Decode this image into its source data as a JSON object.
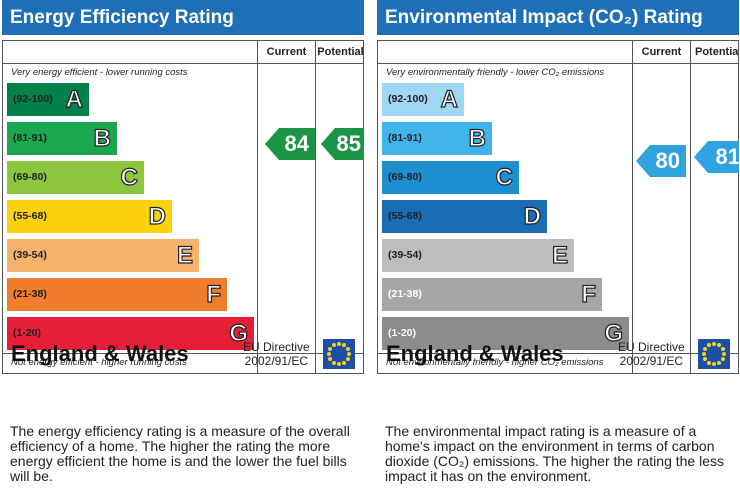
{
  "energy": {
    "title": "Energy Efficiency Rating",
    "col_current": "Current",
    "col_potential": "Potential",
    "top_caption": "Very energy efficient - lower running costs",
    "bottom_caption": "Not energy efficient - higher running costs",
    "bands": [
      {
        "range": "(92-100)",
        "letter": "A",
        "color": "#00804a"
      },
      {
        "range": "(81-91)",
        "letter": "B",
        "color": "#1aa74d"
      },
      {
        "range": "(69-80)",
        "letter": "C",
        "color": "#8cc63f"
      },
      {
        "range": "(55-68)",
        "letter": "D",
        "color": "#fcd20f"
      },
      {
        "range": "(39-54)",
        "letter": "E",
        "color": "#f5b26b"
      },
      {
        "range": "(21-38)",
        "letter": "F",
        "color": "#ef7d2a"
      },
      {
        "range": "(1-20)",
        "letter": "G",
        "color": "#e51f37"
      }
    ],
    "current": "84",
    "potential": "85",
    "region": "England & Wales",
    "directive_line1": "EU Directive",
    "directive_line2": "2002/91/EC",
    "description": "The energy efficiency rating is a measure of the overall efficiency of a home. The higher the rating the more energy efficient the home is and the lower the fuel bills will be."
  },
  "environment": {
    "title": "Environmental Impact (CO₂) Rating",
    "col_current": "Current",
    "col_potential": "Potential",
    "top_caption": "Very environmentally friendly - lower CO₂ emissions",
    "bottom_caption": "Not environmentally friendly - higher CO₂ emissions",
    "bands": [
      {
        "range": "(92-100)",
        "letter": "A",
        "color": "#9fd6f2"
      },
      {
        "range": "(81-91)",
        "letter": "B",
        "color": "#3fb3ea"
      },
      {
        "range": "(69-80)",
        "letter": "C",
        "color": "#1d8fd0"
      },
      {
        "range": "(55-68)",
        "letter": "D",
        "color": "#1a6db5"
      },
      {
        "range": "(39-54)",
        "letter": "E",
        "color": "#bdbdbd"
      },
      {
        "range": "(21-38)",
        "letter": "F",
        "color": "#a6a6a6"
      },
      {
        "range": "(1-20)",
        "letter": "G",
        "color": "#8c8c8c"
      }
    ],
    "current": "80",
    "potential": "81",
    "region": "England & Wales",
    "directive_line1": "EU Directive",
    "directive_line2": "2002/91/EC",
    "description": "The environmental impact rating is a measure of a home's impact on the environment in terms of carbon dioxide (CO₂) emissions. The higher the rating the less impact it has on the environment."
  }
}
